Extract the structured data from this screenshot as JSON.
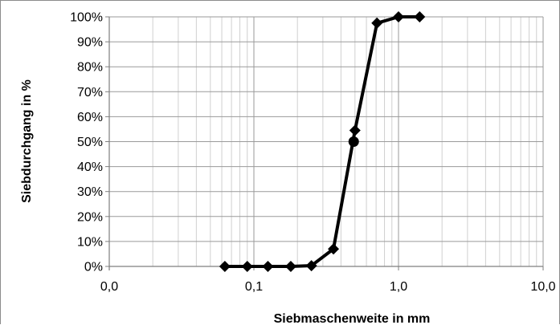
{
  "chart_data": {
    "type": "scatter",
    "xlabel": "Siebmaschenweite in mm",
    "ylabel": "Siebdurchgang in %",
    "x_scale": "log",
    "xlim": [
      0.01,
      10
    ],
    "ylim": [
      0,
      100
    ],
    "x_ticks": [
      {
        "value": 0.01,
        "label": "0,0"
      },
      {
        "value": 0.1,
        "label": "0,1"
      },
      {
        "value": 1,
        "label": "1,0"
      },
      {
        "value": 10,
        "label": "10,0"
      }
    ],
    "y_ticks": [
      {
        "value": 0,
        "label": "0%"
      },
      {
        "value": 10,
        "label": "10%"
      },
      {
        "value": 20,
        "label": "20%"
      },
      {
        "value": 30,
        "label": "30%"
      },
      {
        "value": 40,
        "label": "40%"
      },
      {
        "value": 50,
        "label": "50%"
      },
      {
        "value": 60,
        "label": "60%"
      },
      {
        "value": 70,
        "label": "70%"
      },
      {
        "value": 80,
        "label": "80%"
      },
      {
        "value": 90,
        "label": "90%"
      },
      {
        "value": 100,
        "label": "100%"
      }
    ],
    "grid": true,
    "legend": "none",
    "series": [
      {
        "marker": "diamond",
        "color": "#000000",
        "points": [
          {
            "x": 0.063,
            "y": 0
          },
          {
            "x": 0.09,
            "y": 0
          },
          {
            "x": 0.125,
            "y": 0
          },
          {
            "x": 0.18,
            "y": 0
          },
          {
            "x": 0.25,
            "y": 0.3
          },
          {
            "x": 0.355,
            "y": 7
          },
          {
            "x": 0.5,
            "y": 54.5
          },
          {
            "x": 0.71,
            "y": 97.5
          },
          {
            "x": 1.0,
            "y": 100
          },
          {
            "x": 1.4,
            "y": 100
          }
        ]
      },
      {
        "marker": "circle",
        "color": "#000000",
        "points": [
          {
            "x": 0.49,
            "y": 50
          }
        ]
      }
    ]
  }
}
